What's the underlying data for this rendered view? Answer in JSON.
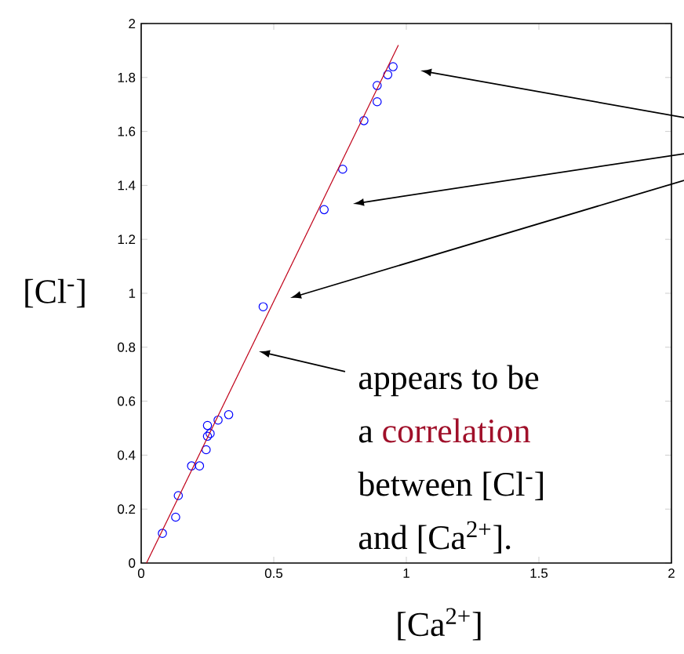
{
  "chart_data": {
    "type": "scatter",
    "xlabel": "[Ca$^{2+}$]",
    "ylabel": "[Cl$^{-}$]",
    "xlim": [
      0,
      2
    ],
    "ylim": [
      0,
      2
    ],
    "xticks": [
      0,
      0.5,
      1,
      1.5,
      2
    ],
    "yticks": [
      0,
      0.2,
      0.4,
      0.6,
      0.8,
      1,
      1.2,
      1.4,
      1.6,
      1.8,
      2
    ],
    "series": [
      {
        "marker": "circle",
        "color": "#0000ff",
        "x": [
          0.08,
          0.13,
          0.14,
          0.19,
          0.22,
          0.245,
          0.25,
          0.26,
          0.25,
          0.29,
          0.33,
          0.46,
          0.69,
          0.76,
          0.84,
          0.89,
          0.89,
          0.93,
          0.95
        ],
        "values": [
          0.11,
          0.17,
          0.25,
          0.36,
          0.36,
          0.42,
          0.47,
          0.48,
          0.51,
          0.53,
          0.55,
          0.95,
          1.31,
          1.46,
          1.64,
          1.71,
          1.77,
          1.81,
          1.84
        ]
      },
      {
        "type": "line",
        "color": "#c00018",
        "line_style": "solid",
        "x": [
          0.02,
          0.97
        ],
        "values": [
          0,
          1.92
        ]
      }
    ],
    "annotations": [
      "appears to be",
      "a",
      "correlation",
      "between [Cl$^{-}$]",
      "and [Ca$^{2+}$]."
    ]
  }
}
